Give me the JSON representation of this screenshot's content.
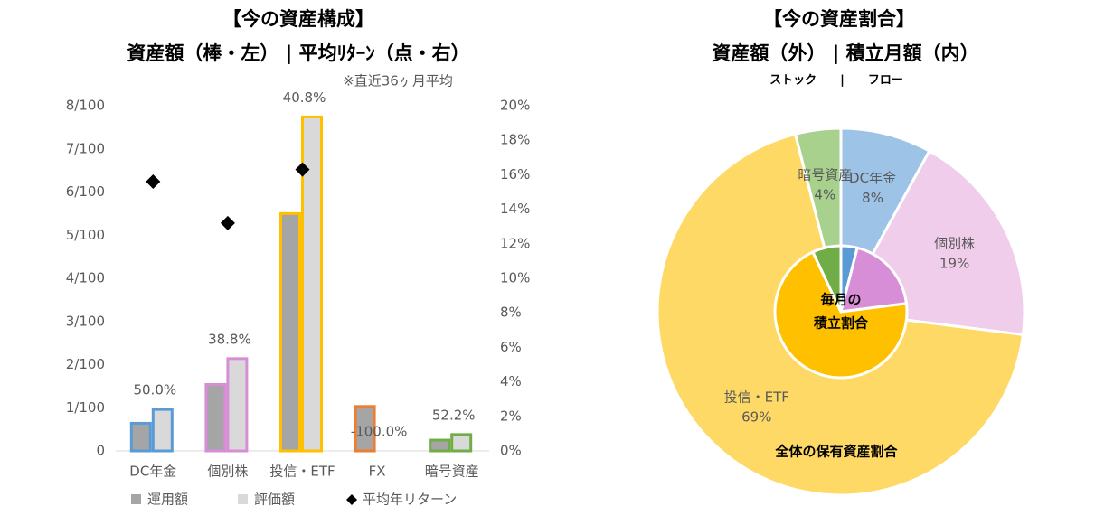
{
  "chart_data": [
    {
      "type": "bar",
      "title": "【今の資産構成】",
      "subtitle": "資産額（棒・左） | 平均ﾘﾀｰﾝ（点・右）",
      "note": "※直近36ヶ月平均",
      "categories": [
        "DC年金",
        "個別株",
        "投信・ETF",
        "FX",
        "暗号資産"
      ],
      "category_colors": [
        "#5b9bd5",
        "#d88ed6",
        "#ffc000",
        "#ed7d31",
        "#70ad47"
      ],
      "series": [
        {
          "name": "運用額",
          "type": "bar",
          "color": "#a5a5a5",
          "values": [
            0.64,
            1.54,
            5.5,
            1.03,
            0.25
          ]
        },
        {
          "name": "評価額",
          "type": "bar",
          "color": "#d9d9d9",
          "values": [
            0.96,
            2.14,
            7.74,
            0,
            0.38
          ]
        },
        {
          "name": "平均年リターン",
          "type": "scatter",
          "axis": "y2",
          "color": "#000000",
          "values": [
            15.6,
            13.2,
            16.3,
            null,
            null
          ]
        }
      ],
      "annotations": [
        "50.0%",
        "38.8%",
        "40.8%",
        "-100.0%",
        "52.2%"
      ],
      "ylim": [
        0,
        8
      ],
      "yticks": [
        0,
        {
          "value": 1,
          "label": "1/100"
        },
        {
          "value": 2,
          "label": "2/100"
        },
        {
          "value": 3,
          "label": "3/100"
        },
        {
          "value": 4,
          "label": "4/100"
        },
        {
          "value": 5,
          "label": "5/100"
        },
        {
          "value": 6,
          "label": "6/100"
        },
        {
          "value": 7,
          "label": "7/100"
        },
        {
          "value": 8,
          "label": "8/100"
        }
      ],
      "y2lim": [
        0,
        20
      ],
      "y2ticks": [
        {
          "value": 0,
          "label": "0%"
        },
        {
          "value": 2,
          "label": "2%"
        },
        {
          "value": 4,
          "label": "4%"
        },
        {
          "value": 6,
          "label": "6%"
        },
        {
          "value": 8,
          "label": "8%"
        },
        {
          "value": 10,
          "label": "10%"
        },
        {
          "value": 12,
          "label": "12%"
        },
        {
          "value": 14,
          "label": "14%"
        },
        {
          "value": 16,
          "label": "16%"
        },
        {
          "value": 18,
          "label": "18%"
        },
        {
          "value": 20,
          "label": "20%"
        }
      ],
      "grid": false,
      "legend": "bottom"
    },
    {
      "type": "pie",
      "title": "【今の資産割合】",
      "subtitle": "資産額（外） | 積立月額（内）",
      "note": "ストック　　|　　フロー",
      "categories": [
        "DC年金",
        "個別株",
        "投信・ETF",
        "暗号資産"
      ],
      "series": [
        {
          "values": [
            8,
            19,
            69,
            4
          ],
          "value_labels": [
            "8%",
            "19%",
            "69%",
            "4%"
          ],
          "colors": [
            "#9dc3e6",
            "#f0cdea",
            "#ffd966",
            "#a9d18e"
          ]
        },
        {
          "values": [
            4,
            19,
            70,
            7
          ],
          "colors": [
            "#5b9bd5",
            "#d88ed6",
            "#ffc000",
            "#70ad47"
          ]
        }
      ],
      "center_label": [
        "毎月の",
        "積立割合"
      ],
      "footer_label": "全体の保有資産割合"
    }
  ]
}
